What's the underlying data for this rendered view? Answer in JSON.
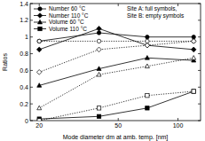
{
  "chart_data": {
    "type": "line",
    "x_label": "Mode diameter dm at amb. temp. [nm]",
    "y_label": "Ratios",
    "annotations": [
      "Site A: full symbols,",
      "Site B: empty symbols"
    ],
    "log": "x",
    "legend": "top-left",
    "xlim": [
      18,
      130
    ],
    "xticks": [
      20,
      50,
      100
    ],
    "ylim": [
      0,
      1.4
    ],
    "yticks": [
      0,
      0.2,
      0.4,
      0.6,
      0.8,
      1,
      1.2,
      1.4
    ],
    "x": [
      20,
      40,
      70,
      120
    ],
    "series": [
      {
        "name": "Number 60 °C",
        "color": "#000000",
        "marker": "circle",
        "line_style": "solid",
        "values": [
          0.95,
          1.05,
          1.0,
          1.0
        ]
      },
      {
        "name": "Number 110 °C",
        "color": "#000000",
        "marker": "diamond",
        "line_style": "solid",
        "values": [
          0.85,
          1.1,
          0.9,
          0.85
        ]
      },
      {
        "name": "Volume 60 °C",
        "color": "#000000",
        "marker": "triangle",
        "line_style": "solid",
        "values": [
          0.42,
          0.62,
          0.75,
          0.72
        ]
      },
      {
        "name": "Volume 110 °C",
        "color": "#000000",
        "marker": "square",
        "line_style": "solid",
        "values": [
          0.02,
          0.05,
          0.15,
          0.35
        ]
      },
      {
        "name": "Number 60 °C",
        "color": "#000000",
        "marker": "circle-open",
        "line_style": "dotted",
        "values": [
          0.95,
          0.95,
          0.95,
          0.95
        ]
      },
      {
        "name": "Number 110 °C",
        "color": "#000000",
        "marker": "diamond-open",
        "line_style": "dotted",
        "values": [
          0.58,
          0.85,
          0.9,
          0.95
        ]
      },
      {
        "name": "Volume 60 °C",
        "color": "#000000",
        "marker": "triangle-open",
        "line_style": "dotted",
        "values": [
          0.15,
          0.55,
          0.65,
          0.75
        ]
      },
      {
        "name": "Volume 110 °C",
        "color": "#000000",
        "marker": "square-open",
        "line_style": "dotted",
        "values": [
          0.0,
          0.15,
          0.3,
          0.35
        ]
      }
    ]
  }
}
